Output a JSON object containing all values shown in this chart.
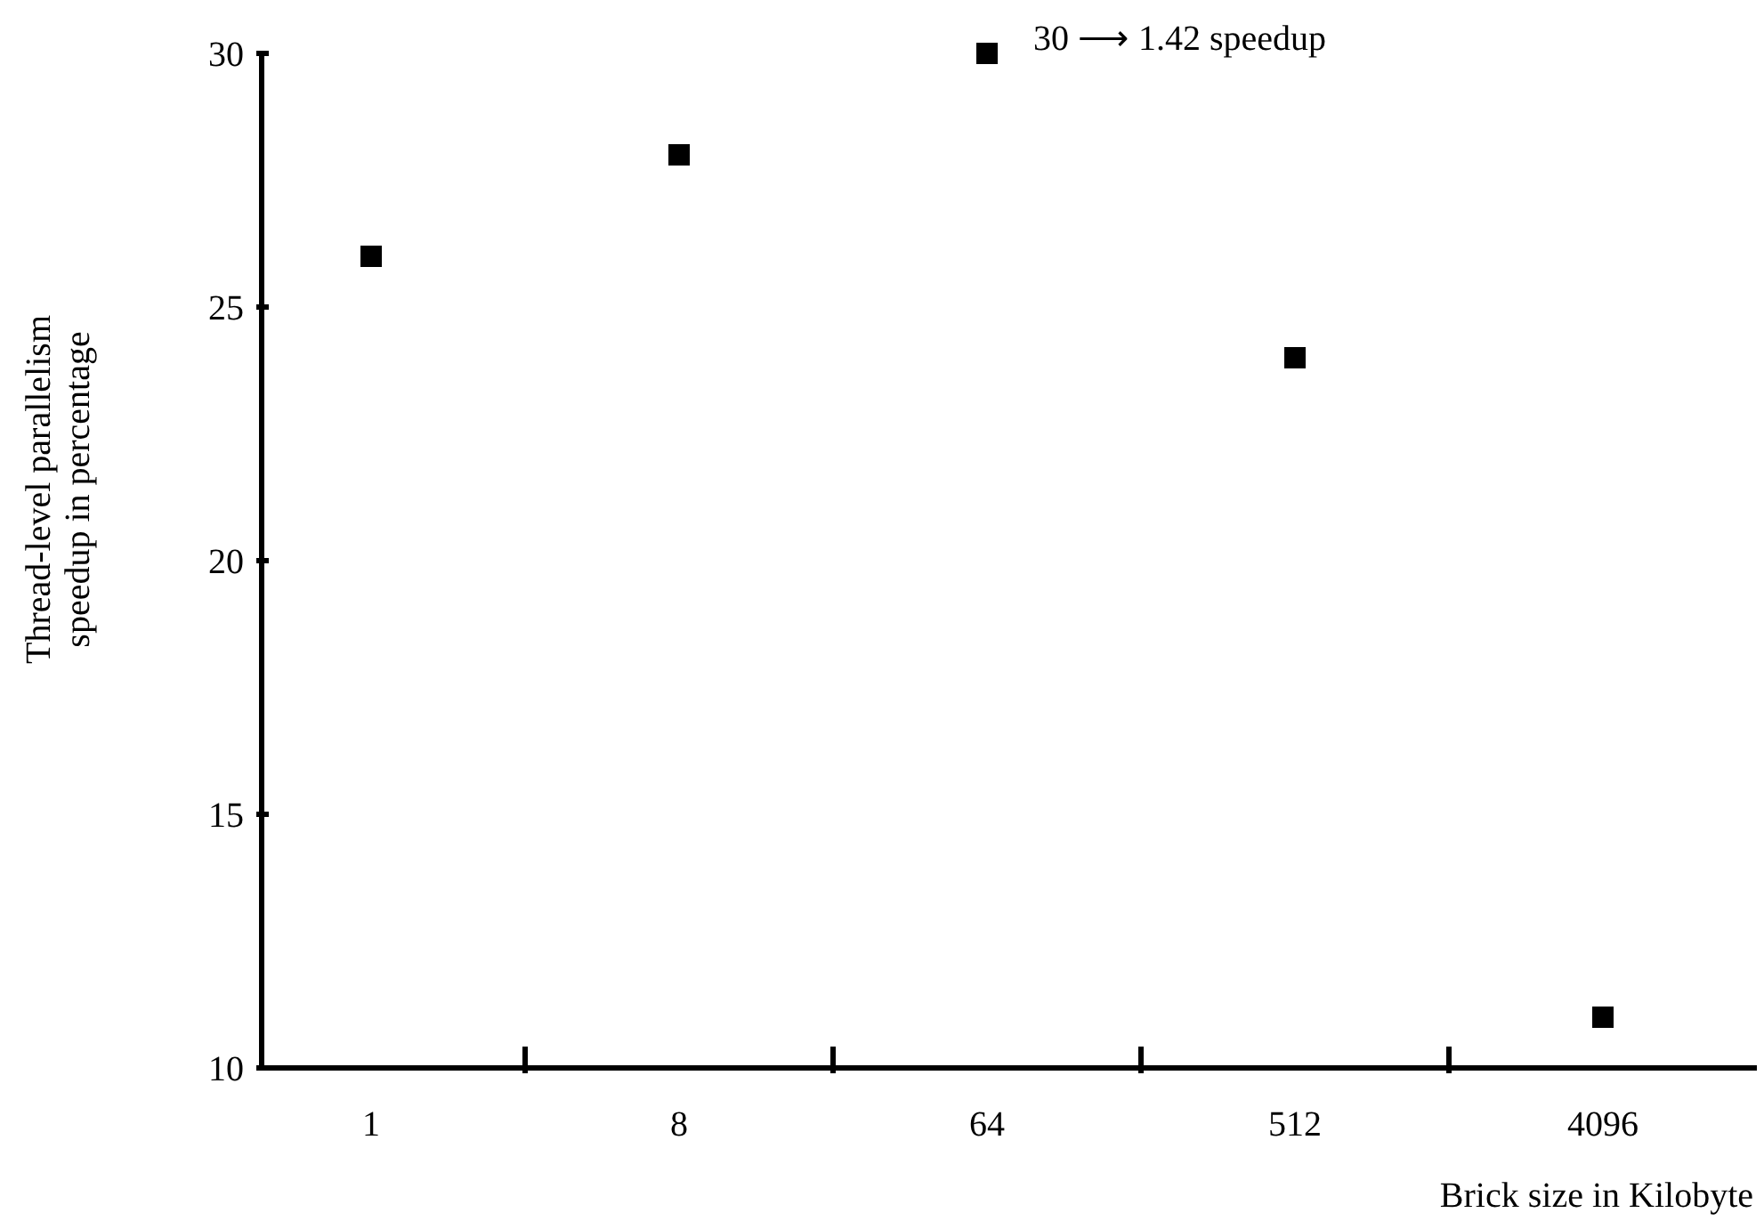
{
  "chart_data": {
    "type": "scatter",
    "xlabel": "Brick size in Kilobyte",
    "ylabel": "Thread-level parallelism\nspeedup in percentage",
    "categories": [
      "1",
      "8",
      "64",
      "512",
      "4096"
    ],
    "series": [
      {
        "color": "#000000",
        "values": [
          26,
          28,
          30,
          24,
          11
        ]
      }
    ],
    "ylim": [
      10,
      30
    ],
    "yticks": [
      10,
      15,
      20,
      25,
      30
    ],
    "marker": "square",
    "grid": false,
    "annotations": [
      {
        "text": "30 ⟶ 1.42 speedup",
        "x": "64",
        "y": 30
      }
    ]
  }
}
